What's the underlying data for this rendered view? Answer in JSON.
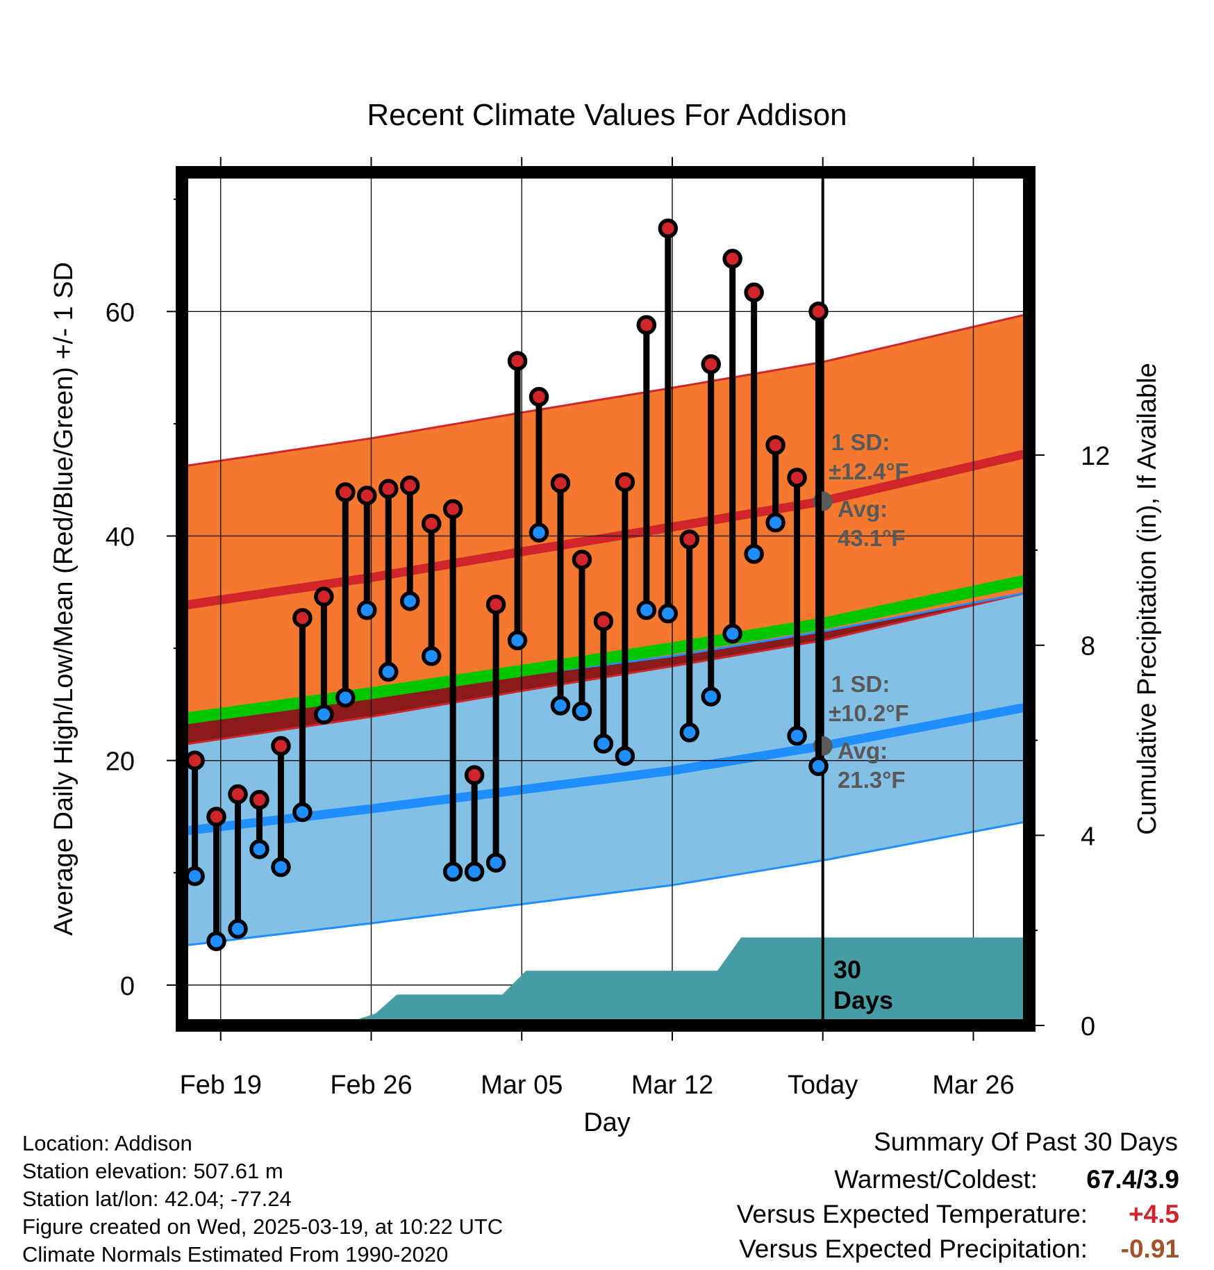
{
  "chart_data": {
    "type": "line",
    "title": "Recent Climate Values For Addison",
    "xlabel": "Day",
    "ylabel_left": "Average Daily High/Low/Mean (Red/Blue/Green) +/- 1 SD",
    "ylabel_right": "Cumulative Precipitation (in), If Available",
    "x_tick_labels": [
      "Feb 19",
      "Feb 26",
      "Mar 05",
      "Mar 12",
      "Today",
      "Mar 26"
    ],
    "x_tick_days": [
      19,
      26,
      33,
      40,
      47,
      54
    ],
    "xlim": [
      17.2,
      56.6
    ],
    "y_left_ticks": [
      0,
      20,
      40,
      60
    ],
    "y_left_minor_ticks": [
      10,
      30,
      50,
      70
    ],
    "ylim_left": [
      -3.6,
      72.4
    ],
    "y_right_ticks": [
      0,
      4,
      8,
      12
    ],
    "y_right_minor_ticks": [
      2,
      6,
      10
    ],
    "ylim_right": [
      0,
      17.95
    ],
    "today_day": 47,
    "daily_obs": {
      "days": [
        17.8,
        18.8,
        19.8,
        20.8,
        21.8,
        22.8,
        23.8,
        24.8,
        25.8,
        26.8,
        27.8,
        28.8,
        29.8,
        30.8,
        31.8,
        32.8,
        33.8,
        34.8,
        35.8,
        36.8,
        37.8,
        38.8,
        39.8,
        40.8,
        41.8,
        42.8,
        43.8,
        44.8,
        45.8,
        46.8
      ],
      "highs": [
        20.0,
        15.0,
        17.0,
        16.5,
        21.3,
        32.7,
        34.6,
        43.9,
        43.6,
        44.2,
        44.5,
        41.1,
        42.4,
        18.7,
        33.9,
        55.6,
        52.4,
        44.7,
        37.9,
        32.4,
        44.8,
        58.8,
        67.4,
        39.7,
        55.3,
        64.7,
        61.7,
        48.1,
        45.2,
        60.0
      ],
      "lows": [
        9.7,
        3.9,
        5.0,
        12.1,
        10.5,
        15.4,
        24.1,
        25.6,
        33.4,
        27.9,
        34.2,
        29.3,
        10.1,
        10.1,
        10.9,
        30.7,
        40.3,
        24.9,
        24.4,
        21.5,
        20.4,
        33.4,
        33.1,
        22.5,
        25.7,
        31.3,
        38.4,
        41.2,
        22.2,
        19.5
      ]
    },
    "normals": {
      "days": [
        17.2,
        26,
        33,
        40,
        47,
        56.6
      ],
      "avg_high": [
        33.8,
        36.3,
        38.6,
        40.8,
        43.1,
        47.4
      ],
      "high_sd": 12.4,
      "avg_low": [
        13.7,
        15.7,
        17.4,
        19.1,
        21.3,
        24.8
      ],
      "low_sd": 10.2,
      "avg_mean": [
        23.7,
        26.0,
        28.0,
        30.0,
        32.2,
        36.1
      ]
    },
    "cumulative_precip": {
      "days": [
        17.2,
        24.5,
        26.2,
        27.2,
        32.1,
        33.2,
        42.1,
        43.2,
        56.6
      ],
      "values": [
        0.0,
        0.0,
        0.25,
        0.65,
        0.65,
        1.15,
        1.15,
        1.85,
        1.85
      ]
    },
    "annotations": {
      "high_sd_label": "1 SD:",
      "high_sd_value": "±12.4°F",
      "high_avg_label": "Avg:",
      "high_avg_value": "43.1°F",
      "low_sd_label": "1 SD:",
      "low_sd_value": "±10.2°F",
      "low_avg_label": "Avg:",
      "low_avg_value": "21.3°F",
      "period_number": "30",
      "period_unit": "Days"
    },
    "colors": {
      "high_band": "#F4792E",
      "high_line": "#D0252A",
      "low_band": "#82C0E5",
      "low_line": "#1F8FFF",
      "mean_line": "#00C600",
      "overlap_band": "#8B1A1A",
      "precip_fill": "#469CA3",
      "high_marker": "#D0252A",
      "low_marker": "#1F8FFF",
      "today_marker": "#595959",
      "positive_anomaly": "#D0252A",
      "precip_anomaly": "#A0522D"
    }
  },
  "info": {
    "location": "Location: Addison",
    "elevation": "Station elevation: 507.61 m",
    "latlon": "Station lat/lon: 42.04; -77.24",
    "created": "Figure created on Wed, 2025-03-19, at 10:22 UTC",
    "normals": "Climate Normals Estimated From 1990-2020"
  },
  "summary": {
    "heading": "Summary Of Past 30 Days",
    "warm_cold_label": "Warmest/Coldest:",
    "warm_cold_value": "67.4/3.9",
    "temp_label": "Versus Expected Temperature:",
    "temp_value": "+4.5",
    "precip_label": "Versus Expected Precipitation:",
    "precip_value": "-0.91"
  }
}
